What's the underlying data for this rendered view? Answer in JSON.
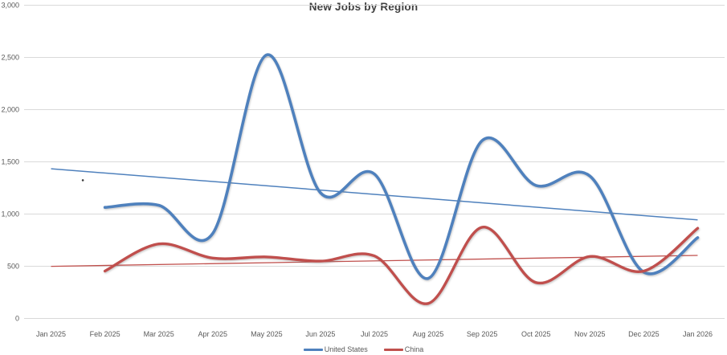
{
  "chart_data": {
    "type": "line",
    "title": "New Jobs by Region",
    "categories": [
      "Jan 2025",
      "Feb 2025",
      "Mar 2025",
      "Apr 2025",
      "May 2025",
      "Jun 2025",
      "Jul 2025",
      "Aug 2025",
      "Sep 2025",
      "Oct 2025",
      "Nov 2025",
      "Dec 2025",
      "Jan 2026"
    ],
    "y_axis": {
      "min": 0,
      "max": 3000,
      "step": 500,
      "tick_labels": [
        "0",
        "500",
        "1,000",
        "1,500",
        "2,000",
        "2,500",
        "3,000"
      ]
    },
    "series": [
      {
        "name": "United States",
        "color": "#4F81BD",
        "line_width": 3.6,
        "smooth": true,
        "values": [
          null,
          1060,
          1080,
          810,
          2520,
          1200,
          1380,
          380,
          1700,
          1270,
          1360,
          440,
          770
        ]
      },
      {
        "name": "China",
        "color": "#C0504D",
        "line_width": 3.4,
        "smooth": true,
        "values": [
          null,
          450,
          710,
          575,
          585,
          545,
          595,
          140,
          870,
          340,
          590,
          450,
          860
        ]
      }
    ],
    "trendlines": [
      {
        "series": "United States",
        "color": "#4F81BD",
        "line_width": 1.5,
        "start_value": 1430,
        "end_value": 940
      },
      {
        "series": "China",
        "color": "#C0504D",
        "line_width": 1.3,
        "start_value": 495,
        "end_value": 600
      }
    ],
    "annotations": [
      {
        "type": "stray-dot",
        "category_index": 0.59,
        "value": 1320,
        "color": "#3a3a3a"
      }
    ],
    "legend": {
      "position": "bottom",
      "entries": [
        "United States",
        "China"
      ]
    },
    "grid": true,
    "gridline_color": "#D9D9D9",
    "title_color": "#404040",
    "axis_text_color": "#595959",
    "background_color": "#FFFFFF"
  }
}
